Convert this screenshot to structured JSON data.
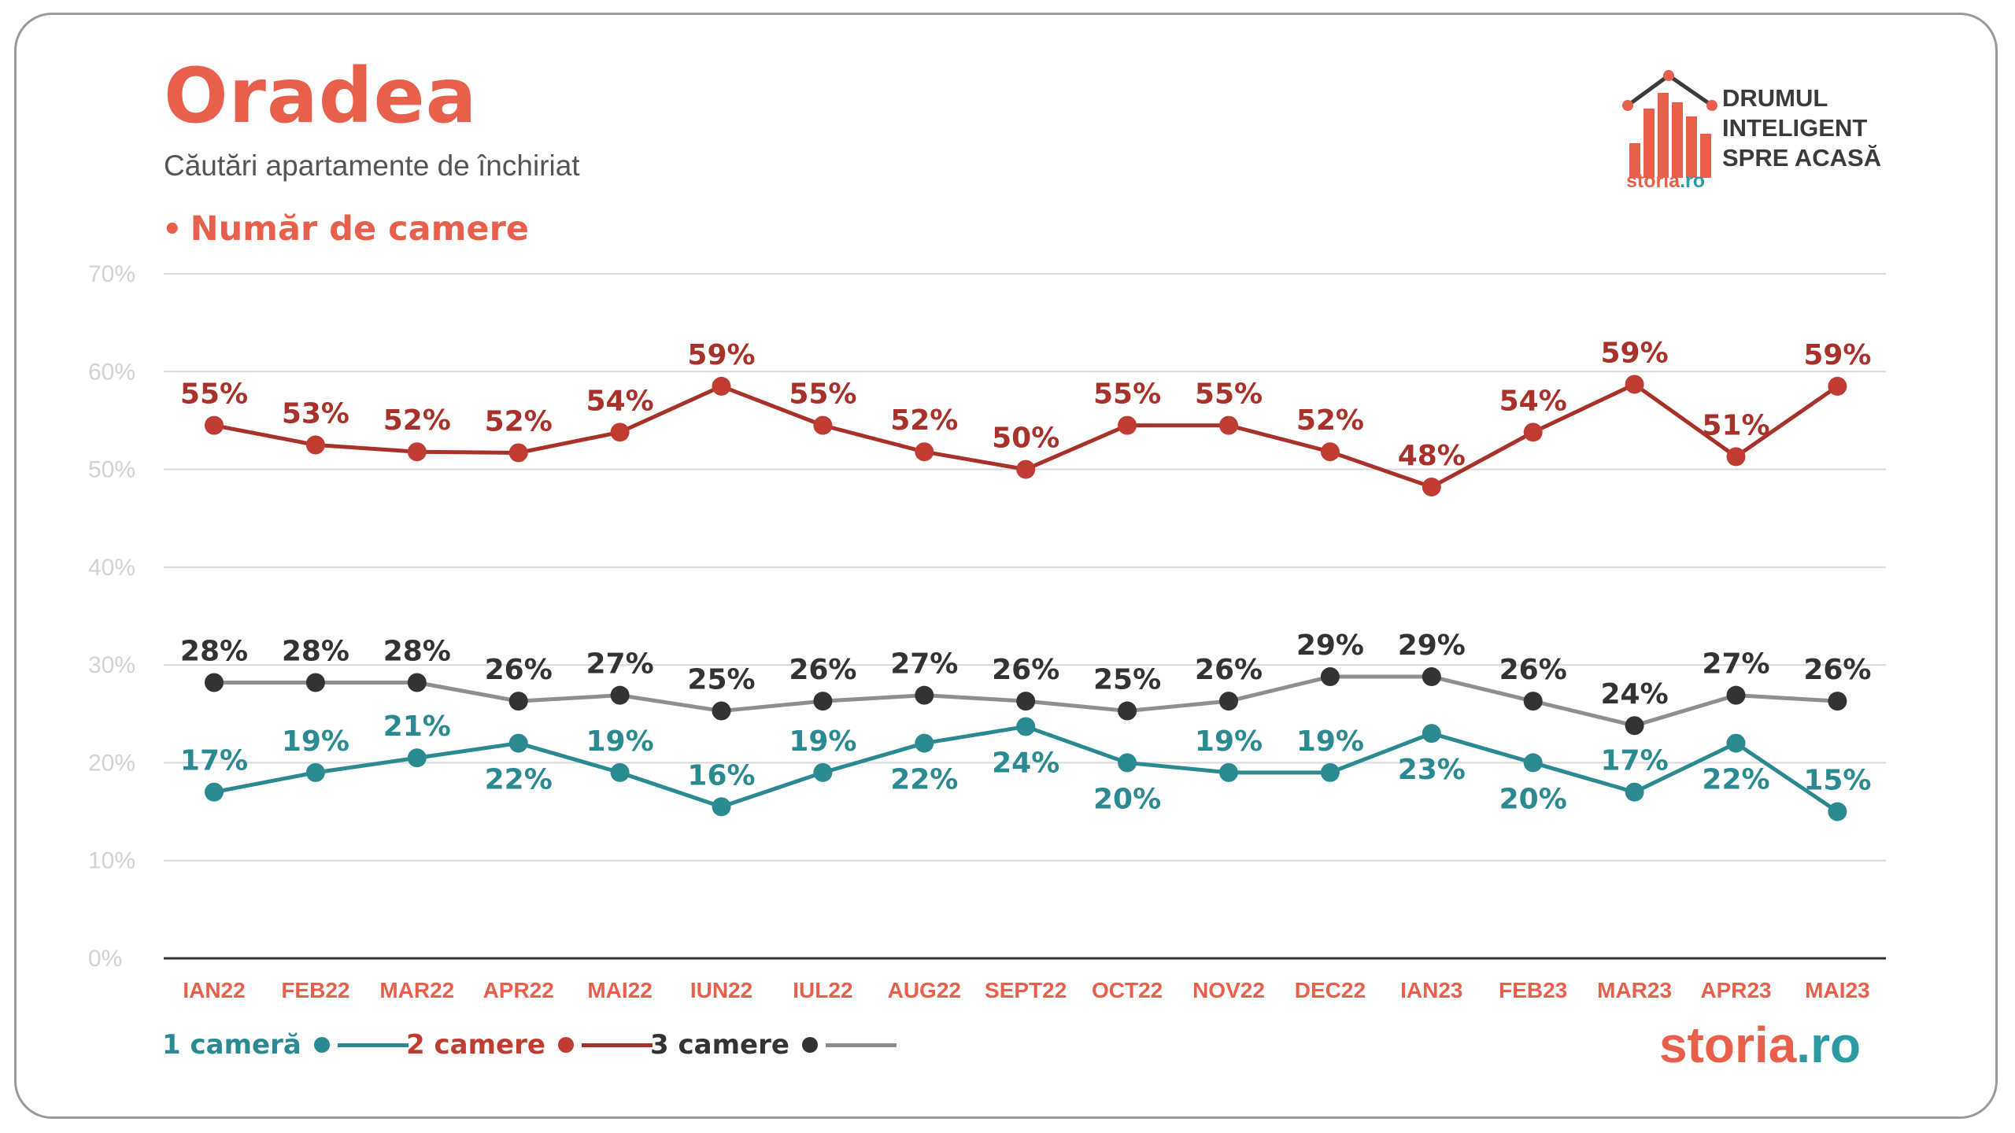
{
  "header": {
    "title": "Oradea",
    "subtitle": "Căutări apartamente de închiriat",
    "section_label": "Număr de camere",
    "brand_text": [
      "DRUMUL",
      "INTELIGENT",
      "SPRE ACASĂ"
    ],
    "brand_small": {
      "main": "storia",
      "suffix": ".ro"
    },
    "logo": {
      "main": "storia",
      "suffix": ".ro"
    }
  },
  "colors": {
    "accent": "#e8604c",
    "teal": "#2b8a91",
    "dark_red": "#a8322a",
    "dark_gray": "#333333",
    "light_gray_line": "#8e8e8e"
  },
  "chart_data": {
    "type": "line",
    "categories": [
      "IAN22",
      "FEB22",
      "MAR22",
      "APR22",
      "MAI22",
      "IUN22",
      "IUL22",
      "AUG22",
      "SEPT22",
      "OCT22",
      "NOV22",
      "DEC22",
      "IAN23",
      "FEB23",
      "MAR23",
      "APR23",
      "MAI23"
    ],
    "ylim": [
      0,
      70
    ],
    "yticks": [
      "0%",
      "10%",
      "20%",
      "30%",
      "40%",
      "50%",
      "60%",
      "70%"
    ],
    "grid": true,
    "legend_position": "bottom-left",
    "series": [
      {
        "name": "1 cameră",
        "values": [
          17,
          19,
          20.5,
          22,
          19,
          15.5,
          19,
          22,
          23.7,
          20,
          19,
          19,
          23,
          20,
          17,
          22,
          15
        ],
        "labels": [
          "17%",
          "19%",
          "21%",
          "22%",
          "19%",
          "16%",
          "19%",
          "22%",
          "24%",
          "20%",
          "19%",
          "19%",
          "23%",
          "20%",
          "17%",
          "22%",
          "15%"
        ],
        "label_pos": [
          "above",
          "above",
          "above",
          "below",
          "above",
          "above",
          "above",
          "below",
          "below",
          "below",
          "above",
          "above",
          "below",
          "below",
          "above",
          "below",
          "above"
        ]
      },
      {
        "name": "2 camere",
        "values": [
          54.5,
          52.5,
          51.8,
          51.7,
          53.8,
          58.5,
          54.5,
          51.8,
          50,
          54.5,
          54.5,
          51.8,
          48.2,
          53.8,
          58.7,
          51.3,
          58.5
        ],
        "labels": [
          "55%",
          "53%",
          "52%",
          "52%",
          "54%",
          "59%",
          "55%",
          "52%",
          "50%",
          "55%",
          "55%",
          "52%",
          "48%",
          "54%",
          "59%",
          "51%",
          "59%"
        ],
        "label_pos": [
          "above",
          "above",
          "above",
          "above",
          "above",
          "above",
          "above",
          "above",
          "above",
          "above",
          "above",
          "above",
          "above",
          "above",
          "above",
          "above",
          "above"
        ]
      },
      {
        "name": "3 camere",
        "values": [
          28.2,
          28.2,
          28.2,
          26.3,
          26.9,
          25.3,
          26.3,
          26.9,
          26.3,
          25.3,
          26.3,
          28.8,
          28.8,
          26.3,
          23.8,
          26.9,
          26.3
        ],
        "labels": [
          "28%",
          "28%",
          "28%",
          "26%",
          "27%",
          "25%",
          "26%",
          "27%",
          "26%",
          "25%",
          "26%",
          "29%",
          "29%",
          "26%",
          "24%",
          "27%",
          "26%"
        ],
        "label_pos": [
          "above",
          "above",
          "above",
          "above",
          "above",
          "above",
          "above",
          "above",
          "above",
          "above",
          "above",
          "above",
          "above",
          "above",
          "above",
          "above",
          "above"
        ]
      }
    ]
  }
}
